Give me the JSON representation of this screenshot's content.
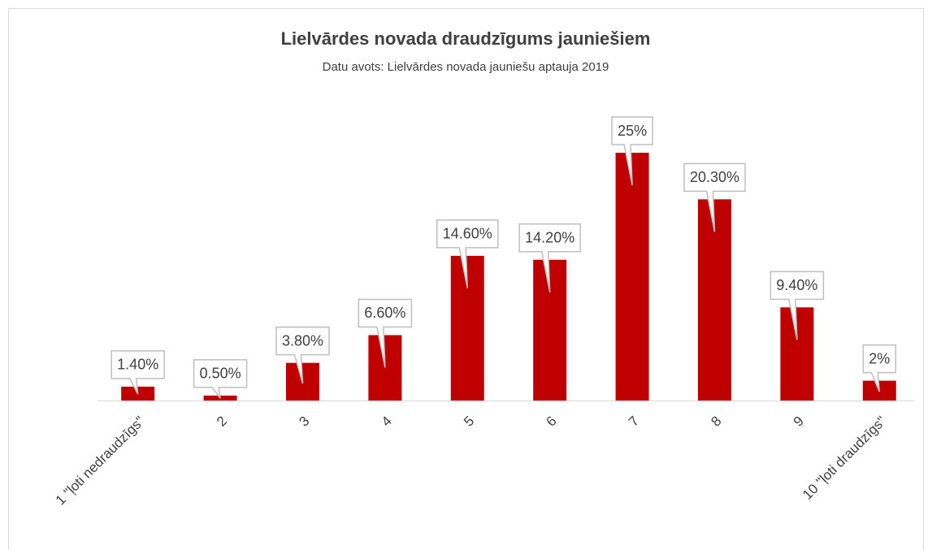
{
  "chart_data": {
    "type": "bar",
    "title": "Lielvārdes  novada draudzīgums jauniešiem",
    "subtitle": "Datu avots: Lielvārdes novada jauniešu aptauja 2019",
    "categories": [
      "1 \"ļoti nedraudzīgs\"",
      "2",
      "3",
      "4",
      "5",
      "6",
      "7",
      "8",
      "9",
      "10 \"ļoti draudzīgs\""
    ],
    "values": [
      1.4,
      0.5,
      3.8,
      6.6,
      14.6,
      14.2,
      25,
      20.3,
      9.4,
      2
    ],
    "value_labels": [
      "1.40%",
      "0.50%",
      "3.80%",
      "6.60%",
      "14.60%",
      "14.20%",
      "25%",
      "20.30%",
      "9.40%",
      "2%"
    ],
    "color": "#c00000"
  }
}
